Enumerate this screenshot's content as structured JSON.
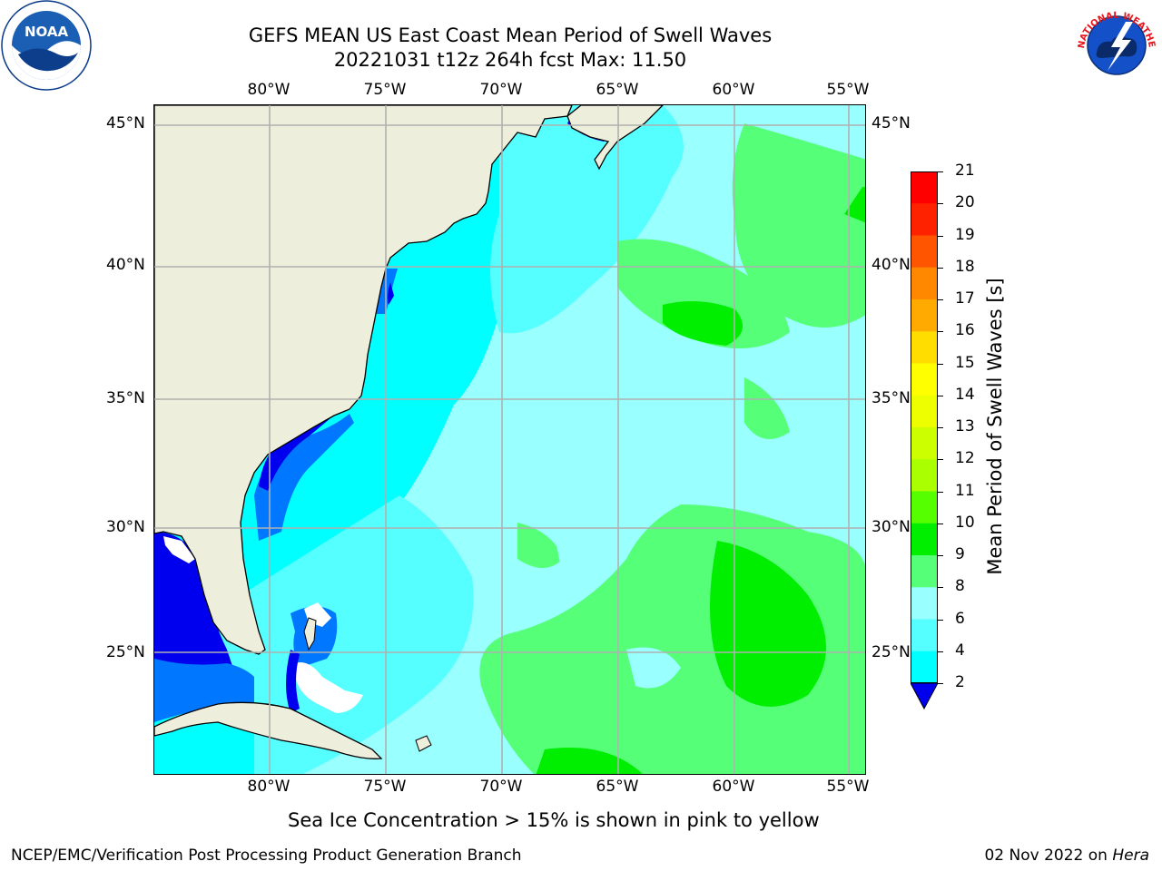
{
  "header": {
    "title_line1": "GEFS MEAN US East Coast Mean Period of Swell Waves",
    "title_line2": "20221031 t12z 264h fcst   Max: 11.50"
  },
  "logos": {
    "left": "noaa-logo",
    "right": "national-weather-service-logo",
    "left_text": "NOAA",
    "right_text": "NATIONAL WEATHER SERVICE"
  },
  "map": {
    "lon_labels": [
      "80°W",
      "75°W",
      "70°W",
      "65°W",
      "60°W",
      "55°W"
    ],
    "lat_labels": [
      "45°N",
      "40°N",
      "35°N",
      "30°N",
      "25°N"
    ],
    "lon_range": [
      -85,
      -54.5
    ],
    "lat_range": [
      20.4,
      46
    ],
    "land_color": "#eeeedd",
    "grid_color": "#b0b0b0"
  },
  "colorbar": {
    "title": "Mean Period of Swell Waves [s]",
    "ticks": [
      "2",
      "4",
      "6",
      "8",
      "9",
      "10",
      "11",
      "12",
      "13",
      "14",
      "15",
      "16",
      "17",
      "18",
      "19",
      "20",
      "21"
    ],
    "colors": [
      "#0000ee",
      "#0077ff",
      "#00ffff",
      "#55ffff",
      "#99ffff",
      "#55ff77",
      "#00ee00",
      "#55ff00",
      "#aaff00",
      "#ccff00",
      "#eeff00",
      "#ffff00",
      "#ffdd00",
      "#ffaa00",
      "#ff8800",
      "#ff5500",
      "#ff2200",
      "#ff0000"
    ]
  },
  "caption": "Sea Ice Concentration > 15% is shown in pink to yellow",
  "footer": {
    "left": "NCEP/EMC/Verification Post Processing Product Generation Branch",
    "right_date": "02 Nov 2022 on ",
    "right_machine": "Hera"
  }
}
